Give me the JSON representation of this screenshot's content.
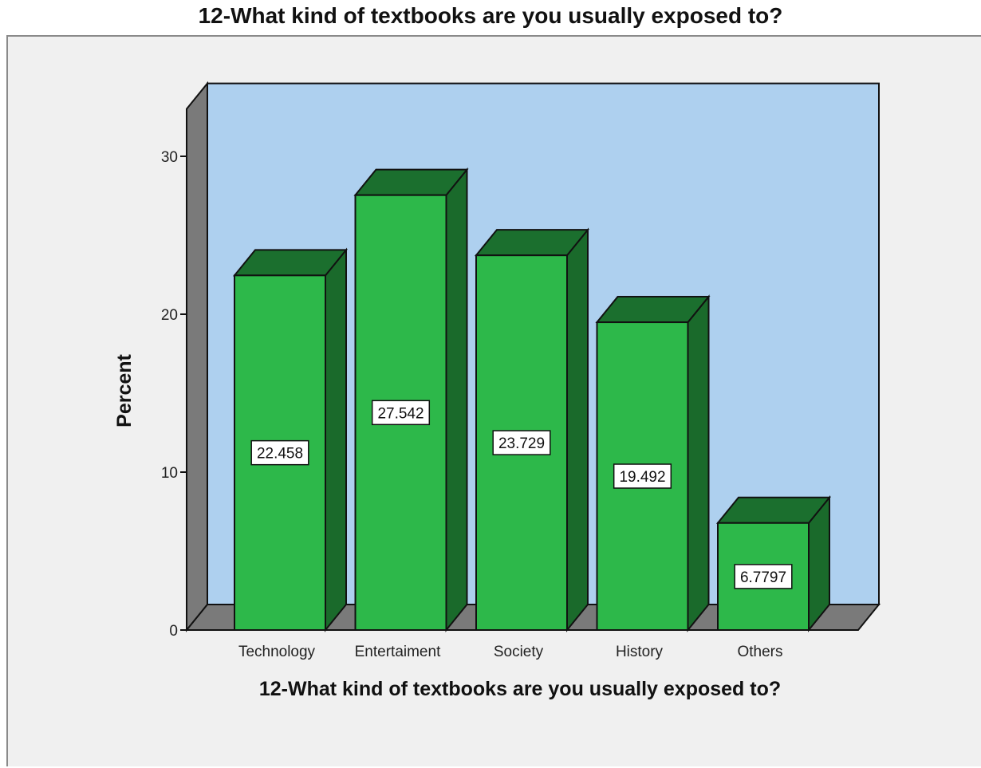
{
  "chart_data": {
    "type": "bar",
    "title": "12-What kind of textbooks are you usually exposed to?",
    "xlabel": "12-What kind of textbooks are you usually exposed to?",
    "ylabel": "Percent",
    "categories": [
      "Technology",
      "Entertaiment",
      "Society",
      "History",
      "Others"
    ],
    "values": [
      22.458,
      27.542,
      23.729,
      19.492,
      6.7797
    ],
    "value_labels": [
      "22.458",
      "27.542",
      "23.729",
      "19.492",
      "6.7797"
    ],
    "yticks": [
      "0",
      "10",
      "20",
      "30"
    ],
    "ylim": [
      0,
      30
    ],
    "grid": false,
    "style_3d": true,
    "colors": {
      "bar_front": "#2db84a",
      "bar_top": "#1b6f2e",
      "bar_side": "#1a6a2b",
      "plot_back": "#aed0ef",
      "floor": "#7a7a7a",
      "frame": "#f0f0f0"
    }
  }
}
